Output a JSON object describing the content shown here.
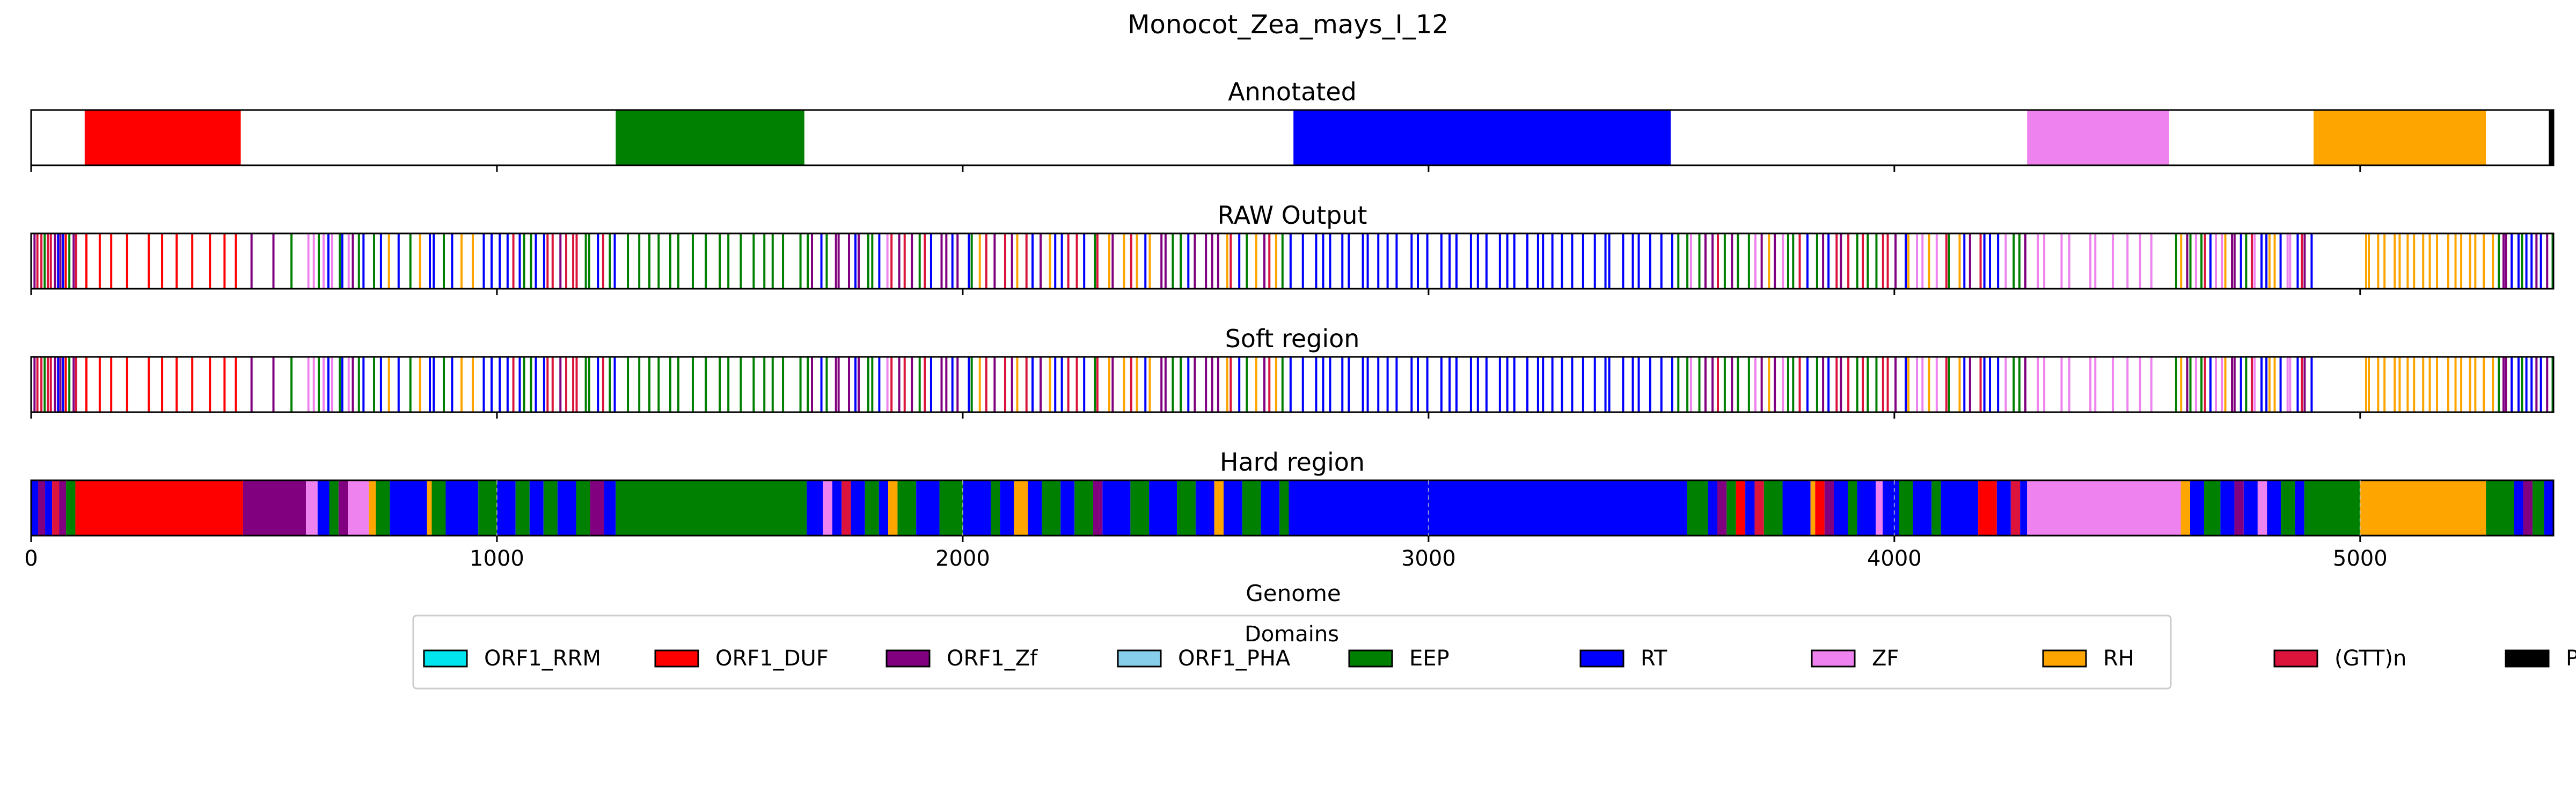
{
  "chart_data": {
    "type": "bar",
    "title": "Monocot_Zea_mays_I_12",
    "xlabel": "Genome",
    "xlim": [
      0,
      5415
    ],
    "xticks": [
      0,
      1000,
      2000,
      3000,
      4000,
      5000
    ],
    "legend": {
      "title": "Domains",
      "placement": "bottom-center",
      "entries": [
        {
          "name": "ORF1_RRM",
          "color": "#00e5ee"
        },
        {
          "name": "ORF1_DUF",
          "color": "#ff0000"
        },
        {
          "name": "ORF1_Zf",
          "color": "#800080"
        },
        {
          "name": "ORF1_PHA",
          "color": "#87ceeb"
        },
        {
          "name": "EEP",
          "color": "#008000"
        },
        {
          "name": "RT",
          "color": "#0000ff"
        },
        {
          "name": "ZF",
          "color": "#ee82ee"
        },
        {
          "name": "RH",
          "color": "#ffa500"
        },
        {
          "name": "(GTT)n",
          "color": "#dc143c"
        },
        {
          "name": "PoliA",
          "color": "#000000"
        }
      ]
    },
    "panels": [
      {
        "title": "Annotated",
        "style": "blocks",
        "segments": [
          {
            "domain": "ORF1_DUF",
            "start": 115,
            "end": 450
          },
          {
            "domain": "EEP",
            "start": 1255,
            "end": 1660
          },
          {
            "domain": "RT",
            "start": 2710,
            "end": 3520
          },
          {
            "domain": "ZF",
            "start": 4285,
            "end": 4590
          },
          {
            "domain": "RH",
            "start": 4900,
            "end": 5270
          },
          {
            "domain": "PoliA",
            "start": 5405,
            "end": 5415
          }
        ]
      },
      {
        "title": "RAW Output",
        "style": "lines",
        "regions": [
          {
            "start": 5,
            "end": 100,
            "mix": [
              "ORF1_Zf",
              "ORF1_DUF",
              "RT",
              "(GTT)n",
              "EEP"
            ],
            "n": 14
          },
          {
            "start": 100,
            "end": 460,
            "mix": [
              "ORF1_DUF"
            ],
            "n": 11
          },
          {
            "start": 460,
            "end": 590,
            "mix": [
              "ORF1_Zf",
              "EEP"
            ],
            "n": 3
          },
          {
            "start": 590,
            "end": 720,
            "mix": [
              "ORF1_Zf",
              "EEP",
              "RT",
              "ZF"
            ],
            "n": 12
          },
          {
            "start": 720,
            "end": 1000,
            "mix": [
              "EEP",
              "RT",
              "RH"
            ],
            "n": 14
          },
          {
            "start": 1000,
            "end": 1260,
            "mix": [
              "EEP",
              "RT",
              "ORF1_Zf",
              "(GTT)n"
            ],
            "n": 20
          },
          {
            "start": 1260,
            "end": 1660,
            "mix": [
              "EEP"
            ],
            "n": 16
          },
          {
            "start": 1660,
            "end": 2000,
            "mix": [
              "RT",
              "EEP",
              "ZF",
              "(GTT)n",
              "ORF1_Zf"
            ],
            "n": 24
          },
          {
            "start": 2000,
            "end": 2700,
            "mix": [
              "EEP",
              "RT",
              "RH",
              "ORF1_Zf",
              "(GTT)n"
            ],
            "n": 44
          },
          {
            "start": 2700,
            "end": 3530,
            "mix": [
              "RT"
            ],
            "n": 40
          },
          {
            "start": 3530,
            "end": 4290,
            "mix": [
              "RT",
              "EEP",
              "ORF1_Zf",
              "(GTT)n",
              "RH",
              "ZF"
            ],
            "n": 52
          },
          {
            "start": 4290,
            "end": 4560,
            "mix": [
              "ZF"
            ],
            "n": 10
          },
          {
            "start": 4600,
            "end": 4900,
            "mix": [
              "RT",
              "EEP",
              "ORF1_Zf",
              "RH",
              "ZF",
              "(GTT)n"
            ],
            "n": 28
          },
          {
            "start": 5000,
            "end": 5290,
            "mix": [
              "RH"
            ],
            "n": 18
          },
          {
            "start": 5290,
            "end": 5415,
            "mix": [
              "EEP",
              "RT",
              "ORF1_Zf"
            ],
            "n": 12
          }
        ]
      },
      {
        "title": "Soft region",
        "style": "lines",
        "regions": [
          {
            "start": 5,
            "end": 100,
            "mix": [
              "ORF1_Zf",
              "ORF1_DUF",
              "RT",
              "(GTT)n",
              "EEP"
            ],
            "n": 14
          },
          {
            "start": 100,
            "end": 460,
            "mix": [
              "ORF1_DUF"
            ],
            "n": 11
          },
          {
            "start": 460,
            "end": 590,
            "mix": [
              "ORF1_Zf",
              "EEP"
            ],
            "n": 3
          },
          {
            "start": 590,
            "end": 720,
            "mix": [
              "ORF1_Zf",
              "EEP",
              "RT",
              "ZF"
            ],
            "n": 12
          },
          {
            "start": 720,
            "end": 1000,
            "mix": [
              "EEP",
              "RT",
              "RH"
            ],
            "n": 14
          },
          {
            "start": 1000,
            "end": 1260,
            "mix": [
              "EEP",
              "RT",
              "ORF1_Zf",
              "(GTT)n"
            ],
            "n": 20
          },
          {
            "start": 1260,
            "end": 1660,
            "mix": [
              "EEP"
            ],
            "n": 16
          },
          {
            "start": 1660,
            "end": 2000,
            "mix": [
              "RT",
              "EEP",
              "ZF",
              "(GTT)n",
              "ORF1_Zf"
            ],
            "n": 24
          },
          {
            "start": 2000,
            "end": 2700,
            "mix": [
              "EEP",
              "RT",
              "RH",
              "ORF1_Zf",
              "(GTT)n"
            ],
            "n": 44
          },
          {
            "start": 2700,
            "end": 3530,
            "mix": [
              "RT"
            ],
            "n": 40
          },
          {
            "start": 3530,
            "end": 4290,
            "mix": [
              "RT",
              "EEP",
              "ORF1_Zf",
              "(GTT)n",
              "RH",
              "ZF"
            ],
            "n": 52
          },
          {
            "start": 4290,
            "end": 4560,
            "mix": [
              "ZF"
            ],
            "n": 10
          },
          {
            "start": 4600,
            "end": 4900,
            "mix": [
              "RT",
              "EEP",
              "ORF1_Zf",
              "RH",
              "ZF",
              "(GTT)n"
            ],
            "n": 28
          },
          {
            "start": 5000,
            "end": 5290,
            "mix": [
              "RH"
            ],
            "n": 18
          },
          {
            "start": 5290,
            "end": 5415,
            "mix": [
              "EEP",
              "RT",
              "ORF1_Zf"
            ],
            "n": 12
          }
        ]
      },
      {
        "title": "Hard region",
        "style": "blocks",
        "segments": [
          {
            "domain": "RT",
            "start": 0,
            "end": 15
          },
          {
            "domain": "ORF1_Zf",
            "start": 15,
            "end": 30
          },
          {
            "domain": "RT",
            "start": 30,
            "end": 45
          },
          {
            "domain": "(GTT)n",
            "start": 45,
            "end": 60
          },
          {
            "domain": "ORF1_Zf",
            "start": 60,
            "end": 75
          },
          {
            "domain": "EEP",
            "start": 75,
            "end": 95
          },
          {
            "domain": "ORF1_DUF",
            "start": 95,
            "end": 455
          },
          {
            "domain": "ORF1_Zf",
            "start": 455,
            "end": 590
          },
          {
            "domain": "ZF",
            "start": 590,
            "end": 615
          },
          {
            "domain": "RT",
            "start": 615,
            "end": 640
          },
          {
            "domain": "EEP",
            "start": 640,
            "end": 660
          },
          {
            "domain": "ORF1_Zf",
            "start": 660,
            "end": 680
          },
          {
            "domain": "ZF",
            "start": 680,
            "end": 725
          },
          {
            "domain": "RH",
            "start": 725,
            "end": 740
          },
          {
            "domain": "EEP",
            "start": 740,
            "end": 770
          },
          {
            "domain": "RT",
            "start": 770,
            "end": 850
          },
          {
            "domain": "RH",
            "start": 850,
            "end": 860
          },
          {
            "domain": "EEP",
            "start": 860,
            "end": 890
          },
          {
            "domain": "RT",
            "start": 890,
            "end": 960
          },
          {
            "domain": "EEP",
            "start": 960,
            "end": 1000
          },
          {
            "domain": "RT",
            "start": 1000,
            "end": 1040
          },
          {
            "domain": "EEP",
            "start": 1040,
            "end": 1070
          },
          {
            "domain": "RT",
            "start": 1070,
            "end": 1100
          },
          {
            "domain": "EEP",
            "start": 1100,
            "end": 1130
          },
          {
            "domain": "RT",
            "start": 1130,
            "end": 1170
          },
          {
            "domain": "EEP",
            "start": 1170,
            "end": 1200
          },
          {
            "domain": "ORF1_Zf",
            "start": 1200,
            "end": 1230
          },
          {
            "domain": "RT",
            "start": 1230,
            "end": 1255
          },
          {
            "domain": "EEP",
            "start": 1255,
            "end": 1665
          },
          {
            "domain": "RT",
            "start": 1665,
            "end": 1700
          },
          {
            "domain": "ZF",
            "start": 1700,
            "end": 1720
          },
          {
            "domain": "RT",
            "start": 1720,
            "end": 1740
          },
          {
            "domain": "(GTT)n",
            "start": 1740,
            "end": 1760
          },
          {
            "domain": "RT",
            "start": 1760,
            "end": 1790
          },
          {
            "domain": "EEP",
            "start": 1790,
            "end": 1820
          },
          {
            "domain": "RT",
            "start": 1820,
            "end": 1840
          },
          {
            "domain": "RH",
            "start": 1840,
            "end": 1860
          },
          {
            "domain": "EEP",
            "start": 1860,
            "end": 1900
          },
          {
            "domain": "RT",
            "start": 1900,
            "end": 1950
          },
          {
            "domain": "EEP",
            "start": 1950,
            "end": 2000
          },
          {
            "domain": "RT",
            "start": 2000,
            "end": 2060
          },
          {
            "domain": "EEP",
            "start": 2060,
            "end": 2080
          },
          {
            "domain": "RT",
            "start": 2080,
            "end": 2110
          },
          {
            "domain": "RH",
            "start": 2110,
            "end": 2140
          },
          {
            "domain": "RT",
            "start": 2140,
            "end": 2170
          },
          {
            "domain": "EEP",
            "start": 2170,
            "end": 2210
          },
          {
            "domain": "RT",
            "start": 2210,
            "end": 2240
          },
          {
            "domain": "EEP",
            "start": 2240,
            "end": 2280
          },
          {
            "domain": "ORF1_Zf",
            "start": 2280,
            "end": 2300
          },
          {
            "domain": "RT",
            "start": 2300,
            "end": 2360
          },
          {
            "domain": "EEP",
            "start": 2360,
            "end": 2400
          },
          {
            "domain": "RT",
            "start": 2400,
            "end": 2460
          },
          {
            "domain": "EEP",
            "start": 2460,
            "end": 2500
          },
          {
            "domain": "RT",
            "start": 2500,
            "end": 2540
          },
          {
            "domain": "RH",
            "start": 2540,
            "end": 2560
          },
          {
            "domain": "RT",
            "start": 2560,
            "end": 2600
          },
          {
            "domain": "EEP",
            "start": 2600,
            "end": 2640
          },
          {
            "domain": "RT",
            "start": 2640,
            "end": 2680
          },
          {
            "domain": "EEP",
            "start": 2680,
            "end": 2700
          },
          {
            "domain": "RT",
            "start": 2700,
            "end": 3555
          },
          {
            "domain": "EEP",
            "start": 3555,
            "end": 3600
          },
          {
            "domain": "RT",
            "start": 3600,
            "end": 3620
          },
          {
            "domain": "ORF1_Zf",
            "start": 3620,
            "end": 3640
          },
          {
            "domain": "EEP",
            "start": 3640,
            "end": 3660
          },
          {
            "domain": "ORF1_DUF",
            "start": 3660,
            "end": 3680
          },
          {
            "domain": "RT",
            "start": 3680,
            "end": 3700
          },
          {
            "domain": "(GTT)n",
            "start": 3700,
            "end": 3720
          },
          {
            "domain": "EEP",
            "start": 3720,
            "end": 3760
          },
          {
            "domain": "RT",
            "start": 3760,
            "end": 3820
          },
          {
            "domain": "RH",
            "start": 3820,
            "end": 3830
          },
          {
            "domain": "ORF1_DUF",
            "start": 3830,
            "end": 3850
          },
          {
            "domain": "ORF1_Zf",
            "start": 3850,
            "end": 3870
          },
          {
            "domain": "RT",
            "start": 3870,
            "end": 3900
          },
          {
            "domain": "EEP",
            "start": 3900,
            "end": 3920
          },
          {
            "domain": "RT",
            "start": 3920,
            "end": 3960
          },
          {
            "domain": "ZF",
            "start": 3960,
            "end": 3975
          },
          {
            "domain": "RT",
            "start": 3975,
            "end": 4010
          },
          {
            "domain": "EEP",
            "start": 4010,
            "end": 4040
          },
          {
            "domain": "RT",
            "start": 4040,
            "end": 4080
          },
          {
            "domain": "EEP",
            "start": 4080,
            "end": 4100
          },
          {
            "domain": "RT",
            "start": 4100,
            "end": 4180
          },
          {
            "domain": "ORF1_DUF",
            "start": 4180,
            "end": 4220
          },
          {
            "domain": "RT",
            "start": 4220,
            "end": 4250
          },
          {
            "domain": "(GTT)n",
            "start": 4250,
            "end": 4270
          },
          {
            "domain": "RT",
            "start": 4270,
            "end": 4285
          },
          {
            "domain": "ZF",
            "start": 4285,
            "end": 4615
          },
          {
            "domain": "RH",
            "start": 4615,
            "end": 4635
          },
          {
            "domain": "RT",
            "start": 4635,
            "end": 4665
          },
          {
            "domain": "EEP",
            "start": 4665,
            "end": 4700
          },
          {
            "domain": "RT",
            "start": 4700,
            "end": 4730
          },
          {
            "domain": "ORF1_Zf",
            "start": 4730,
            "end": 4750
          },
          {
            "domain": "RT",
            "start": 4750,
            "end": 4780
          },
          {
            "domain": "ZF",
            "start": 4780,
            "end": 4800
          },
          {
            "domain": "RT",
            "start": 4800,
            "end": 4830
          },
          {
            "domain": "EEP",
            "start": 4830,
            "end": 4860
          },
          {
            "domain": "RT",
            "start": 4860,
            "end": 4880
          },
          {
            "domain": "EEP",
            "start": 4880,
            "end": 5000
          },
          {
            "domain": "RH",
            "start": 5000,
            "end": 5270
          },
          {
            "domain": "EEP",
            "start": 5270,
            "end": 5330
          },
          {
            "domain": "RT",
            "start": 5330,
            "end": 5350
          },
          {
            "domain": "ORF1_Zf",
            "start": 5350,
            "end": 5370
          },
          {
            "domain": "EEP",
            "start": 5370,
            "end": 5395
          },
          {
            "domain": "RT",
            "start": 5395,
            "end": 5415
          }
        ]
      }
    ]
  }
}
